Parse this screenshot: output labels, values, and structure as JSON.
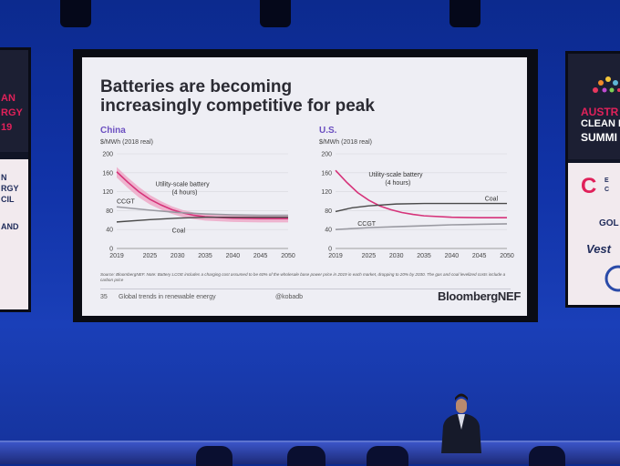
{
  "slide": {
    "title_line1": "Batteries are becoming",
    "title_line2": "increasingly competitive for peak",
    "source": "Source: BloombergNEF. Note: Battery LCOE includes a charging cost assumed to be 60% of the wholesale base power price in 2019 in each market, dropping to 20% by 2030. The gas and coal levelized costs include a carbon price",
    "footer_page": "35",
    "footer_text": "Global trends in renewable energy",
    "footer_handle": "@kobadb",
    "brand": "BloombergNEF"
  },
  "banners": {
    "left": {
      "line1": "AN",
      "line2": "RGY",
      "line3": "19",
      "line4": "N",
      "line5": "RGY",
      "line6": "CIL",
      "line7": "AND"
    },
    "right": {
      "line1": "AUSTR",
      "line2": "CLEAN E",
      "line3": "SUMMI",
      "line4": "C",
      "line5": "E",
      "line6": "C",
      "line7": "GOL",
      "line8": "Vest"
    }
  },
  "colors": {
    "battery": "#d6337a",
    "battery_band": "#ee9fc2",
    "coal": "#4a4a4a",
    "ccgt": "#9a9aa2",
    "title": "#2b2b33",
    "panel_title": "#6b4fc0"
  },
  "chart_data": [
    {
      "type": "line",
      "title": "China",
      "ylabel": "$/MWh (2018 real)",
      "ylim": [
        0,
        200
      ],
      "yticks": [
        "0",
        "40",
        "80",
        "120",
        "160",
        "200"
      ],
      "xticks": [
        "2019",
        "2025",
        "2030",
        "2035",
        "2040",
        "2045",
        "2050"
      ],
      "annotations": {
        "battery": "Utility-scale battery",
        "battery_sub": "(4 hours)",
        "ccgt": "CCGT",
        "coal": "Coal"
      },
      "series": [
        {
          "name": "Utility-scale battery",
          "x": [
            2019,
            2021,
            2023,
            2025,
            2027,
            2029,
            2031,
            2033,
            2035,
            2040,
            2045,
            2050
          ],
          "y": [
            162,
            140,
            120,
            104,
            92,
            82,
            75,
            70,
            67,
            64,
            63,
            63
          ],
          "band_upper": [
            172,
            150,
            130,
            113,
            100,
            89,
            81,
            76,
            72,
            70,
            69,
            69
          ],
          "band_lower": [
            150,
            128,
            108,
            93,
            82,
            73,
            66,
            62,
            59,
            56,
            55,
            55
          ]
        },
        {
          "name": "Coal",
          "x": [
            2019,
            2025,
            2030,
            2035,
            2040,
            2045,
            2050
          ],
          "y": [
            56,
            61,
            64,
            66,
            66,
            66,
            66
          ]
        },
        {
          "name": "CCGT",
          "x": [
            2019,
            2025,
            2030,
            2035,
            2040,
            2045,
            2050
          ],
          "y": [
            88,
            81,
            76,
            73,
            71,
            70,
            70
          ]
        }
      ]
    },
    {
      "type": "line",
      "title": "U.S.",
      "ylabel": "$/MWh (2018 real)",
      "ylim": [
        0,
        200
      ],
      "yticks": [
        "0",
        "40",
        "80",
        "120",
        "160",
        "200"
      ],
      "xticks": [
        "2019",
        "2025",
        "2030",
        "2035",
        "2040",
        "2045",
        "2050"
      ],
      "annotations": {
        "battery": "Utility-scale battery",
        "battery_sub": "(4 hours)",
        "ccgt": "CCGT",
        "coal": "Coal"
      },
      "series": [
        {
          "name": "Utility-scale battery",
          "x": [
            2019,
            2021,
            2023,
            2025,
            2027,
            2029,
            2031,
            2033,
            2035,
            2040,
            2045,
            2050
          ],
          "y": [
            165,
            140,
            118,
            102,
            90,
            82,
            76,
            72,
            69,
            66,
            65,
            65
          ]
        },
        {
          "name": "Coal",
          "x": [
            2019,
            2022,
            2025,
            2030,
            2035,
            2040,
            2045,
            2050
          ],
          "y": [
            78,
            86,
            90,
            94,
            95,
            95,
            95,
            95
          ]
        },
        {
          "name": "CCGT",
          "x": [
            2019,
            2025,
            2030,
            2035,
            2040,
            2045,
            2050
          ],
          "y": [
            40,
            44,
            46,
            48,
            50,
            51,
            52
          ]
        }
      ]
    }
  ]
}
